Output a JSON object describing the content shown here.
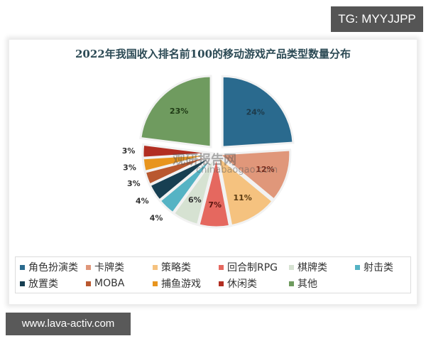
{
  "badges": {
    "top_right": "TG: MYYJJPP",
    "bottom_left": "www.lava-activ.com"
  },
  "watermark": {
    "name": "观研报告网",
    "url": "chinabaogao.com"
  },
  "chart_data": {
    "type": "pie",
    "title": "2022年我国收入排名前100的移动游戏产品类型数量分布",
    "categories": [
      "角色扮演类",
      "卡牌类",
      "策略类",
      "回合制RPG",
      "棋牌类",
      "射击类",
      "放置类",
      "MOBA",
      "捕鱼游戏",
      "休闲类",
      "其他"
    ],
    "values": [
      24,
      12,
      11,
      7,
      6,
      4,
      4,
      3,
      3,
      3,
      23
    ],
    "labels": [
      "24%",
      "12%",
      "11%",
      "7%",
      "6%",
      "4%",
      "4%",
      "3%",
      "3%",
      "3%",
      "23%"
    ],
    "colors": [
      "#2a6a8e",
      "#e0977a",
      "#f5c27f",
      "#e5685f",
      "#d6e2d2",
      "#55b3c4",
      "#173f52",
      "#b9582f",
      "#e8951e",
      "#b22e22",
      "#6f9b5f"
    ],
    "exploded": [
      "角色扮演类",
      "其他"
    ],
    "start_angle": 0,
    "direction": "clockwise",
    "legend_position": "bottom",
    "unit": "%"
  },
  "legend": {
    "rows": [
      [
        {
          "label": "角色扮演类",
          "color": "#2a6a8e"
        },
        {
          "label": "卡牌类",
          "color": "#e0977a"
        },
        {
          "label": "策略类",
          "color": "#f5c27f"
        },
        {
          "label": "回合制RPG",
          "color": "#e5685f"
        },
        {
          "label": "棋牌类",
          "color": "#d6e2d2"
        },
        {
          "label": "射击类",
          "color": "#55b3c4"
        }
      ],
      [
        {
          "label": "放置类",
          "color": "#173f52"
        },
        {
          "label": "MOBA",
          "color": "#b9582f"
        },
        {
          "label": "捕鱼游戏",
          "color": "#e8951e"
        },
        {
          "label": "休闲类",
          "color": "#b22e22"
        },
        {
          "label": "其他",
          "color": "#6f9b5f"
        }
      ]
    ]
  }
}
